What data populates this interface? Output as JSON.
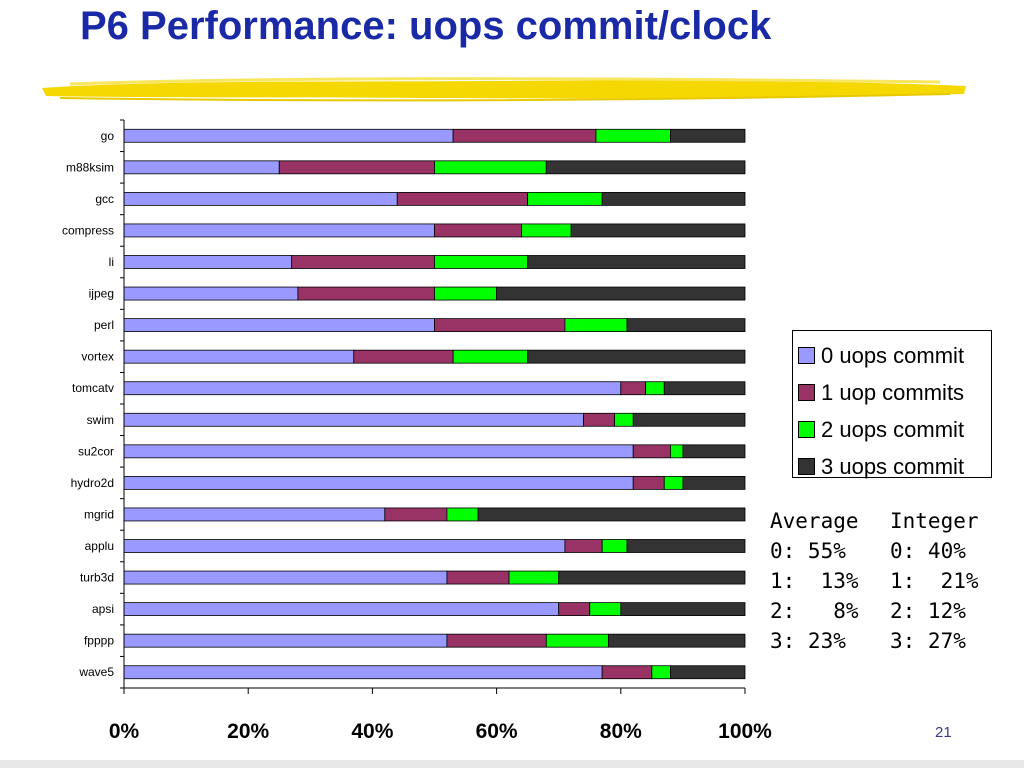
{
  "slide": {
    "title": "P6 Performance: uops commit/clock",
    "page_number": "21"
  },
  "colors": {
    "title": "#1a2aa6",
    "underline": "#f2d500",
    "series": [
      "#9999ff",
      "#993366",
      "#00ff00",
      "#333333"
    ]
  },
  "legend": {
    "items": [
      "0 uops commit",
      "1 uop commits",
      "2 uops commit",
      "3 uops commit"
    ]
  },
  "stats": {
    "rows": [
      [
        "Average",
        "Integer"
      ],
      [
        "0: 55%",
        "0: 40%"
      ],
      [
        "1:  13%",
        "1:  21%"
      ],
      [
        "2:   8%",
        "2: 12%"
      ],
      [
        "3: 23%",
        "3: 27%"
      ]
    ]
  },
  "chart_data": {
    "type": "bar",
    "orientation": "horizontal",
    "stacked": "percent",
    "xlim": [
      0,
      100
    ],
    "x_ticks": [
      "0%",
      "20%",
      "40%",
      "60%",
      "80%",
      "100%"
    ],
    "grid": false,
    "legend_position": "right",
    "categories": [
      "go",
      "m88ksim",
      "gcc",
      "compress",
      "li",
      "ijpeg",
      "perl",
      "vortex",
      "tomcatv",
      "swim",
      "su2cor",
      "hydro2d",
      "mgrid",
      "applu",
      "turb3d",
      "apsi",
      "fpppp",
      "wave5"
    ],
    "series": [
      {
        "name": "0 uops commit",
        "values": [
          53,
          25,
          44,
          50,
          27,
          28,
          50,
          37,
          80,
          74,
          82,
          82,
          42,
          71,
          52,
          70,
          52,
          77
        ]
      },
      {
        "name": "1 uop commits",
        "values": [
          23,
          25,
          21,
          14,
          23,
          22,
          21,
          16,
          4,
          5,
          6,
          5,
          10,
          6,
          10,
          5,
          16,
          8
        ]
      },
      {
        "name": "2 uops commit",
        "values": [
          12,
          18,
          12,
          8,
          15,
          10,
          10,
          12,
          3,
          3,
          2,
          3,
          5,
          4,
          8,
          5,
          10,
          3
        ]
      },
      {
        "name": "3 uops commit",
        "values": [
          12,
          32,
          23,
          28,
          35,
          40,
          19,
          35,
          13,
          18,
          10,
          10,
          43,
          19,
          30,
          20,
          22,
          12
        ]
      }
    ]
  }
}
